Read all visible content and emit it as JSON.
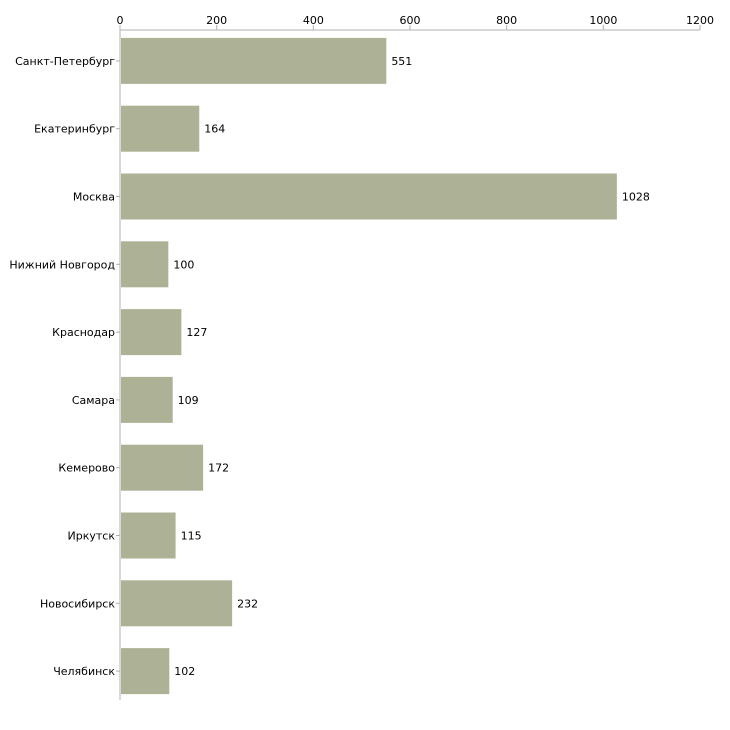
{
  "chart_data": {
    "type": "bar",
    "orientation": "horizontal",
    "title": "",
    "xlabel": "",
    "ylabel": "",
    "categories": [
      "Санкт-Петербург",
      "Екатеринбург",
      "Москва",
      "Нижний Новгород",
      "Краснодар",
      "Самара",
      "Кемерово",
      "Иркутск",
      "Новосибирск",
      "Челябинск"
    ],
    "values": [
      551,
      164,
      1028,
      100,
      127,
      109,
      172,
      115,
      232,
      102
    ],
    "value_labels": [
      "551",
      "164",
      "1028",
      "100",
      "127",
      "109",
      "172",
      "115",
      "232",
      "102"
    ],
    "xlim": [
      0,
      1200
    ],
    "ticks": [
      0,
      200,
      400,
      600,
      800,
      1000,
      1200
    ],
    "tick_labels": [
      "0",
      "200",
      "400",
      "600",
      "800",
      "1000",
      "1200"
    ],
    "axis_position": "top",
    "grid": false,
    "legend": "none",
    "colors": {
      "bar": "#adb297",
      "axis": "#b0b0b0",
      "text": "#000000"
    }
  }
}
